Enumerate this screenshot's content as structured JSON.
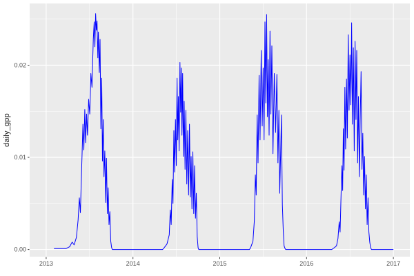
{
  "chart_data": {
    "type": "line",
    "title": "",
    "xlabel": "",
    "ylabel": "daily_gpp",
    "legend": "none",
    "grid": "major-and-minor",
    "theme": "ggplot2-grey",
    "colors": {
      "figure_bg": "#FFFFFF",
      "panel_bg": "#EBEBEB",
      "grid_major": "#FFFFFF",
      "grid_minor": "#F6F6F6",
      "line": "#0000FF",
      "axis_text": "#4D4D4D",
      "tick_mark": "#333333",
      "axis_title": "#1A1A1A"
    },
    "x_axis": {
      "lim": [
        2012.81,
        2017.19
      ],
      "ticks": [
        2013,
        2014,
        2015,
        2016,
        2017
      ],
      "tick_labels": [
        "2013",
        "2014",
        "2015",
        "2016",
        "2017"
      ],
      "minor": [
        2013.5,
        2014.5,
        2015.5,
        2016.5
      ]
    },
    "y_axis": {
      "lim": [
        -0.00078,
        0.0267
      ],
      "ticks": [
        0,
        0.01,
        0.02
      ],
      "tick_labels": [
        "0.00",
        "0.01",
        "0.02"
      ],
      "minor": [
        0.005,
        0.015,
        0.025
      ]
    },
    "series": [
      {
        "name": "daily_gpp",
        "color": "#0000FF",
        "points": [
          [
            2013.09,
            0.0001
          ],
          [
            2013.23,
            0.0001
          ],
          [
            2013.27,
            0.0003
          ],
          [
            2013.3,
            0.0008
          ],
          [
            2013.322,
            0.0005
          ],
          [
            2013.348,
            0.0013
          ],
          [
            2013.368,
            0.0032
          ],
          [
            2013.382,
            0.0056
          ],
          [
            2013.394,
            0.004
          ],
          [
            2013.41,
            0.0092
          ],
          [
            2013.424,
            0.0136
          ],
          [
            2013.434,
            0.0108
          ],
          [
            2013.445,
            0.0152
          ],
          [
            2013.455,
            0.0116
          ],
          [
            2013.466,
            0.0147
          ],
          [
            2013.476,
            0.0124
          ],
          [
            2013.49,
            0.0163
          ],
          [
            2013.502,
            0.0147
          ],
          [
            2013.515,
            0.0191
          ],
          [
            2013.528,
            0.0176
          ],
          [
            2013.543,
            0.0228
          ],
          [
            2013.553,
            0.0247
          ],
          [
            2013.561,
            0.022
          ],
          [
            2013.57,
            0.0256
          ],
          [
            2013.578,
            0.0238
          ],
          [
            2013.586,
            0.0248
          ],
          [
            2013.595,
            0.0208
          ],
          [
            2013.602,
            0.0236
          ],
          [
            2013.612,
            0.0192
          ],
          [
            2013.621,
            0.0228
          ],
          [
            2013.63,
            0.0131
          ],
          [
            2013.64,
            0.0186
          ],
          [
            2013.649,
            0.0096
          ],
          [
            2013.657,
            0.0141
          ],
          [
            2013.666,
            0.0079
          ],
          [
            2013.676,
            0.0107
          ],
          [
            2013.686,
            0.0051
          ],
          [
            2013.695,
            0.0099
          ],
          [
            2013.705,
            0.0039
          ],
          [
            2013.714,
            0.0067
          ],
          [
            2013.724,
            0.0027
          ],
          [
            2013.734,
            0.0041
          ],
          [
            2013.744,
            0.0009
          ],
          [
            2013.754,
            0.0002
          ],
          [
            2013.762,
            0.0
          ],
          [
            2014.342,
            0.0
          ],
          [
            2014.36,
            0.0002
          ],
          [
            2014.392,
            0.0006
          ],
          [
            2014.418,
            0.0016
          ],
          [
            2014.43,
            0.0043
          ],
          [
            2014.44,
            0.0027
          ],
          [
            2014.452,
            0.0076
          ],
          [
            2014.461,
            0.005
          ],
          [
            2014.471,
            0.0129
          ],
          [
            2014.48,
            0.0084
          ],
          [
            2014.49,
            0.0141
          ],
          [
            2014.499,
            0.0091
          ],
          [
            2014.508,
            0.0186
          ],
          [
            2014.516,
            0.0119
          ],
          [
            2014.524,
            0.0166
          ],
          [
            2014.532,
            0.0107
          ],
          [
            2014.541,
            0.0203
          ],
          [
            2014.549,
            0.0149
          ],
          [
            2014.557,
            0.0197
          ],
          [
            2014.564,
            0.0124
          ],
          [
            2014.572,
            0.0191
          ],
          [
            2014.581,
            0.0101
          ],
          [
            2014.59,
            0.0161
          ],
          [
            2014.6,
            0.0087
          ],
          [
            2014.61,
            0.0151
          ],
          [
            2014.62,
            0.0071
          ],
          [
            2014.63,
            0.0129
          ],
          [
            2014.641,
            0.0059
          ],
          [
            2014.651,
            0.0136
          ],
          [
            2014.661,
            0.0057
          ],
          [
            2014.67,
            0.0101
          ],
          [
            2014.68,
            0.0044
          ],
          [
            2014.69,
            0.0106
          ],
          [
            2014.7,
            0.0039
          ],
          [
            2014.71,
            0.0091
          ],
          [
            2014.72,
            0.0034
          ],
          [
            2014.73,
            0.0061
          ],
          [
            2014.74,
            0.0014
          ],
          [
            2014.75,
            0.0002
          ],
          [
            2014.758,
            0.0
          ],
          [
            2015.342,
            0.0
          ],
          [
            2015.355,
            0.0002
          ],
          [
            2015.382,
            0.0009
          ],
          [
            2015.398,
            0.0031
          ],
          [
            2015.41,
            0.0081
          ],
          [
            2015.42,
            0.0059
          ],
          [
            2015.431,
            0.0146
          ],
          [
            2015.441,
            0.0094
          ],
          [
            2015.453,
            0.0189
          ],
          [
            2015.464,
            0.0119
          ],
          [
            2015.478,
            0.0216
          ],
          [
            2015.489,
            0.0134
          ],
          [
            2015.5,
            0.0197
          ],
          [
            2015.51,
            0.0119
          ],
          [
            2015.521,
            0.0247
          ],
          [
            2015.53,
            0.0159
          ],
          [
            2015.54,
            0.0255
          ],
          [
            2015.549,
            0.0144
          ],
          [
            2015.558,
            0.0206
          ],
          [
            2015.568,
            0.0124
          ],
          [
            2015.579,
            0.0237
          ],
          [
            2015.589,
            0.0147
          ],
          [
            2015.6,
            0.0221
          ],
          [
            2015.613,
            0.0104
          ],
          [
            2015.628,
            0.0191
          ],
          [
            2015.643,
            0.0127
          ],
          [
            2015.658,
            0.019
          ],
          [
            2015.67,
            0.0094
          ],
          [
            2015.681,
            0.0151
          ],
          [
            2015.691,
            0.0061
          ],
          [
            2015.701,
            0.0104
          ],
          [
            2015.711,
            0.0146
          ],
          [
            2015.721,
            0.0049
          ],
          [
            2015.731,
            0.0021
          ],
          [
            2015.741,
            0.0004
          ],
          [
            2015.752,
            0.0001
          ],
          [
            2015.76,
            0.0
          ],
          [
            2016.29,
            0.0
          ],
          [
            2016.32,
            0.0002
          ],
          [
            2016.345,
            0.0004
          ],
          [
            2016.362,
            0.0012
          ],
          [
            2016.376,
            0.003
          ],
          [
            2016.386,
            0.0019
          ],
          [
            2016.398,
            0.0062
          ],
          [
            2016.408,
            0.0091
          ],
          [
            2016.416,
            0.0064
          ],
          [
            2016.424,
            0.0131
          ],
          [
            2016.432,
            0.0086
          ],
          [
            2016.441,
            0.0176
          ],
          [
            2016.45,
            0.0109
          ],
          [
            2016.46,
            0.0185
          ],
          [
            2016.47,
            0.0121
          ],
          [
            2016.48,
            0.0233
          ],
          [
            2016.49,
            0.0151
          ],
          [
            2016.5,
            0.0211
          ],
          [
            2016.51,
            0.0157
          ],
          [
            2016.519,
            0.0246
          ],
          [
            2016.529,
            0.0136
          ],
          [
            2016.539,
            0.0219
          ],
          [
            2016.549,
            0.0107
          ],
          [
            2016.559,
            0.0226
          ],
          [
            2016.569,
            0.0141
          ],
          [
            2016.578,
            0.0216
          ],
          [
            2016.588,
            0.0094
          ],
          [
            2016.598,
            0.0166
          ],
          [
            2016.608,
            0.0079
          ],
          [
            2016.618,
            0.0141
          ],
          [
            2016.628,
            0.0193
          ],
          [
            2016.638,
            0.0087
          ],
          [
            2016.648,
            0.0126
          ],
          [
            2016.658,
            0.0059
          ],
          [
            2016.668,
            0.0101
          ],
          [
            2016.678,
            0.0044
          ],
          [
            2016.688,
            0.0081
          ],
          [
            2016.698,
            0.0027
          ],
          [
            2016.708,
            0.0056
          ],
          [
            2016.718,
            0.0019
          ],
          [
            2016.728,
            0.0008
          ],
          [
            2016.738,
            0.0002
          ],
          [
            2016.748,
            0.0
          ],
          [
            2017.0,
            0.0
          ]
        ]
      }
    ]
  }
}
